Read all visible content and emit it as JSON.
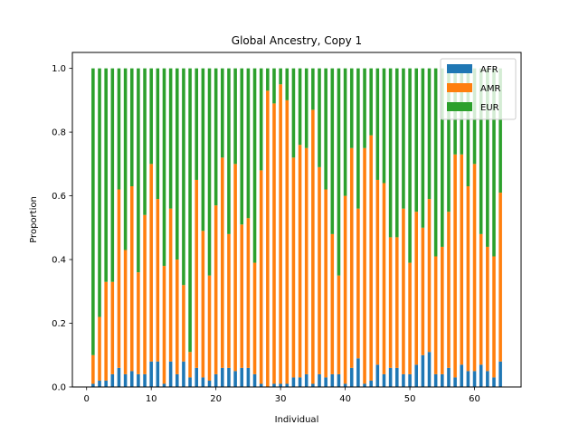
{
  "chart_data": {
    "type": "bar",
    "stacked": true,
    "title": "Global Ancestry, Copy 1",
    "xlabel": "Individual",
    "ylabel": "Proportion",
    "xlim": [
      -2.2,
      67.2
    ],
    "ylim": [
      0,
      1.05
    ],
    "xticks": [
      0,
      10,
      20,
      30,
      40,
      50,
      60
    ],
    "yticks": [
      0.0,
      0.2,
      0.4,
      0.6,
      0.8,
      1.0
    ],
    "ytick_labels": [
      "0.0",
      "0.2",
      "0.4",
      "0.6",
      "0.8",
      "1.0"
    ],
    "legend": "top-right",
    "grid": false,
    "x": [
      1,
      2,
      3,
      4,
      5,
      6,
      7,
      8,
      9,
      10,
      11,
      12,
      13,
      14,
      15,
      16,
      17,
      18,
      19,
      20,
      21,
      22,
      23,
      24,
      25,
      26,
      27,
      28,
      29,
      30,
      31,
      32,
      33,
      34,
      35,
      36,
      37,
      38,
      39,
      40,
      41,
      42,
      43,
      44,
      45,
      46,
      47,
      48,
      49,
      50,
      51,
      52,
      53,
      54,
      55,
      56,
      57,
      58,
      59,
      60,
      61,
      62,
      63,
      64
    ],
    "series": [
      {
        "name": "AFR",
        "color": "#1f77b4",
        "values": [
          0.01,
          0.02,
          0.02,
          0.04,
          0.06,
          0.04,
          0.05,
          0.04,
          0.04,
          0.08,
          0.08,
          0.01,
          0.08,
          0.04,
          0.08,
          0.03,
          0.06,
          0.03,
          0.02,
          0.04,
          0.06,
          0.06,
          0.05,
          0.06,
          0.06,
          0.04,
          0.01,
          0.0,
          0.01,
          0.01,
          0.01,
          0.03,
          0.03,
          0.04,
          0.01,
          0.04,
          0.03,
          0.04,
          0.04,
          0.01,
          0.06,
          0.09,
          0.01,
          0.02,
          0.07,
          0.04,
          0.06,
          0.06,
          0.04,
          0.04,
          0.07,
          0.1,
          0.11,
          0.04,
          0.04,
          0.06,
          0.03,
          0.07,
          0.05,
          0.05,
          0.07,
          0.05,
          0.03,
          0.08
        ]
      },
      {
        "name": "AMR",
        "color": "#ff7f0e",
        "values": [
          0.09,
          0.2,
          0.31,
          0.29,
          0.56,
          0.39,
          0.58,
          0.32,
          0.5,
          0.62,
          0.51,
          0.37,
          0.48,
          0.36,
          0.24,
          0.08,
          0.59,
          0.46,
          0.33,
          0.53,
          0.66,
          0.42,
          0.65,
          0.45,
          0.47,
          0.35,
          0.67,
          0.93,
          0.88,
          0.94,
          0.89,
          0.69,
          0.73,
          0.71,
          0.86,
          0.65,
          0.59,
          0.44,
          0.31,
          0.59,
          0.69,
          0.47,
          0.74,
          0.77,
          0.58,
          0.6,
          0.41,
          0.41,
          0.52,
          0.35,
          0.48,
          0.4,
          0.48,
          0.37,
          0.4,
          0.49,
          0.7,
          0.66,
          0.58,
          0.65,
          0.41,
          0.39,
          0.38,
          0.53
        ]
      },
      {
        "name": "EUR",
        "color": "#2ca02c",
        "values": [
          0.9,
          0.78,
          0.67,
          0.67,
          0.38,
          0.57,
          0.37,
          0.64,
          0.46,
          0.3,
          0.41,
          0.62,
          0.44,
          0.6,
          0.68,
          0.89,
          0.35,
          0.51,
          0.65,
          0.43,
          0.28,
          0.52,
          0.3,
          0.49,
          0.47,
          0.61,
          0.32,
          0.07,
          0.11,
          0.05,
          0.1,
          0.28,
          0.24,
          0.25,
          0.13,
          0.31,
          0.38,
          0.52,
          0.65,
          0.4,
          0.25,
          0.44,
          0.25,
          0.21,
          0.35,
          0.36,
          0.53,
          0.53,
          0.44,
          0.61,
          0.45,
          0.5,
          0.41,
          0.59,
          0.56,
          0.45,
          0.27,
          0.27,
          0.37,
          0.3,
          0.52,
          0.56,
          0.59,
          0.39
        ]
      }
    ]
  }
}
